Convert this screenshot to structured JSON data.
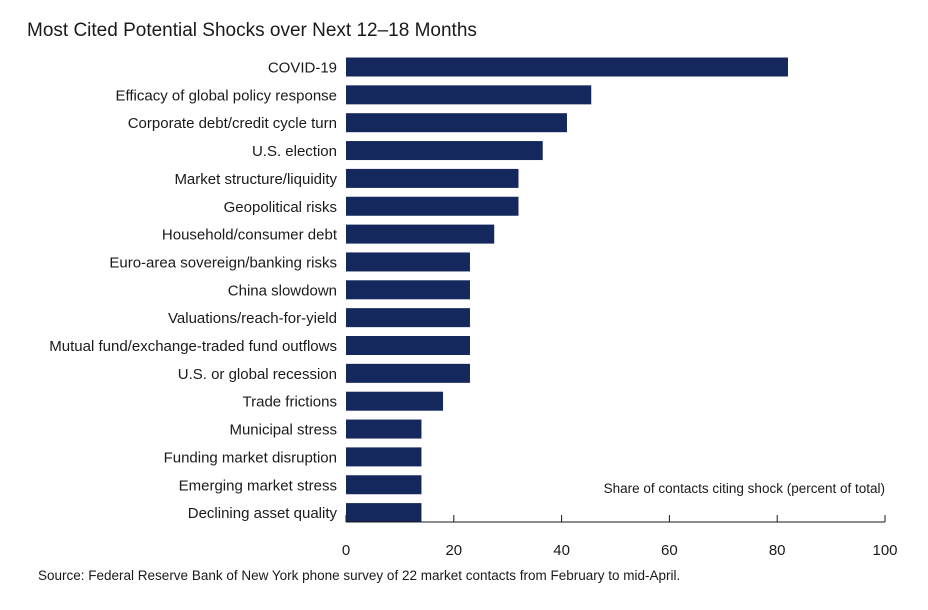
{
  "chart_data": {
    "type": "bar",
    "orientation": "horizontal",
    "title": "Most Cited Potential Shocks over Next 12–18 Months",
    "categories": [
      "COVID-19",
      "Efficacy of global policy response",
      "Corporate debt/credit cycle turn",
      "U.S. election",
      "Market structure/liquidity",
      "Geopolitical risks",
      "Household/consumer debt",
      "Euro-area sovereign/banking risks",
      "China slowdown",
      "Valuations/reach-for-yield",
      "Mutual fund/exchange-traded fund outflows",
      "U.S. or global recession",
      "Trade frictions",
      "Municipal stress",
      "Funding market disruption",
      "Emerging market stress",
      "Declining asset quality"
    ],
    "values": [
      82,
      45.5,
      41,
      36.5,
      32,
      32,
      27.5,
      23,
      23,
      23,
      23,
      23,
      18,
      14,
      14,
      14,
      14
    ],
    "xlabel": "Share of contacts citing shock (percent of total)",
    "ylabel": "",
    "xlim": [
      0,
      100
    ],
    "xticks": [
      0,
      20,
      40,
      60,
      80,
      100
    ],
    "grid": false,
    "bar_color": "#14285e",
    "source": "Source: Federal Reserve Bank of New York phone survey of 22 market contacts from February to mid-April."
  }
}
